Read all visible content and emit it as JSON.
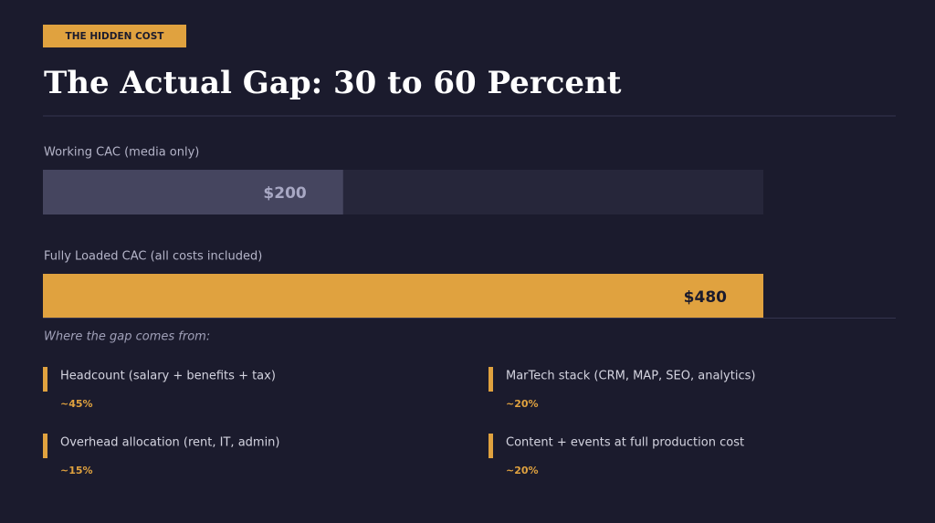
{
  "header": {
    "tag": "THE HIDDEN COST",
    "title": "The Actual Gap: 30 to 60 Percent"
  },
  "chart_data": {
    "type": "hbar",
    "categories": [
      "Working CAC (media only)",
      "Fully Loaded CAC (all costs included)"
    ],
    "values": [
      200,
      480
    ],
    "value_labels": [
      "$200",
      "$480"
    ],
    "colors": [
      "#45455f",
      "#e0a23f"
    ],
    "xlim": [
      0,
      480
    ]
  },
  "breakdown": {
    "heading": "Where the gap comes from:",
    "items": [
      {
        "label": "Headcount (salary + benefits + tax)",
        "share": "~45%"
      },
      {
        "label": "MarTech stack (CRM, MAP, SEO, analytics)",
        "share": "~20%"
      },
      {
        "label": "Overhead allocation (rent, IT, admin)",
        "share": "~15%"
      },
      {
        "label": "Content + events at full production cost",
        "share": "~20%"
      }
    ]
  }
}
